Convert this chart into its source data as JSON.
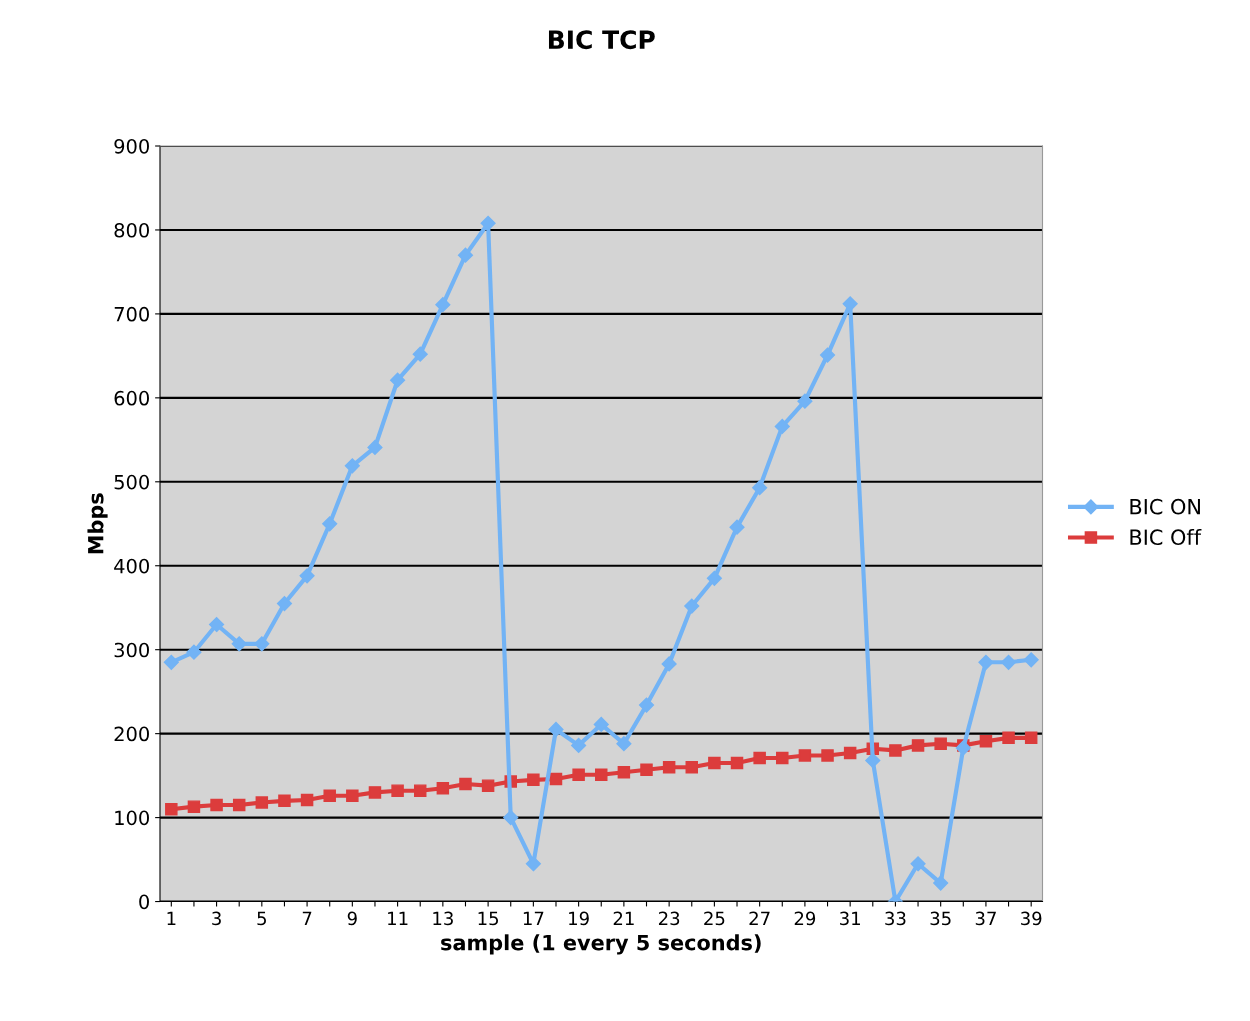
{
  "chart_data": {
    "type": "line",
    "title": "BIC TCP",
    "xlabel": "sample (1 every 5 seconds)",
    "ylabel": "Mbps",
    "categories": [
      "1",
      null,
      "3",
      null,
      "5",
      null,
      "7",
      null,
      "9",
      null,
      "11",
      null,
      "13",
      null,
      "15",
      null,
      "17",
      null,
      "19",
      null,
      "21",
      null,
      "23",
      null,
      "25",
      null,
      "27",
      null,
      "29",
      null,
      "31",
      null,
      "33",
      null,
      "35",
      null,
      "37",
      null,
      "39"
    ],
    "series": [
      {
        "name": "BIC ON",
        "color": "#72b3f5",
        "marker": "diamond",
        "values": [
          285,
          297,
          330,
          307,
          307,
          355,
          388,
          450,
          519,
          541,
          621,
          652,
          711,
          770,
          808,
          100,
          45,
          205,
          186,
          211,
          188,
          234,
          283,
          352,
          385,
          446,
          493,
          566,
          596,
          651,
          712,
          168,
          0,
          45,
          22,
          183,
          285,
          285,
          288
        ]
      },
      {
        "name": "BIC Off",
        "color": "#dc3c3c",
        "marker": "square",
        "values": [
          110,
          113,
          115,
          115,
          118,
          120,
          121,
          126,
          126,
          130,
          132,
          132,
          135,
          140,
          138,
          143,
          145,
          146,
          151,
          151,
          154,
          157,
          160,
          160,
          165,
          165,
          171,
          171,
          174,
          174,
          177,
          182,
          180,
          186,
          188,
          186,
          191,
          195,
          195
        ]
      }
    ],
    "ylim": [
      0,
      900
    ],
    "yticks": [
      0,
      100,
      200,
      300,
      400,
      500,
      600,
      700,
      800,
      900
    ],
    "grid": "y",
    "legend": "right",
    "line_style": "solid"
  }
}
